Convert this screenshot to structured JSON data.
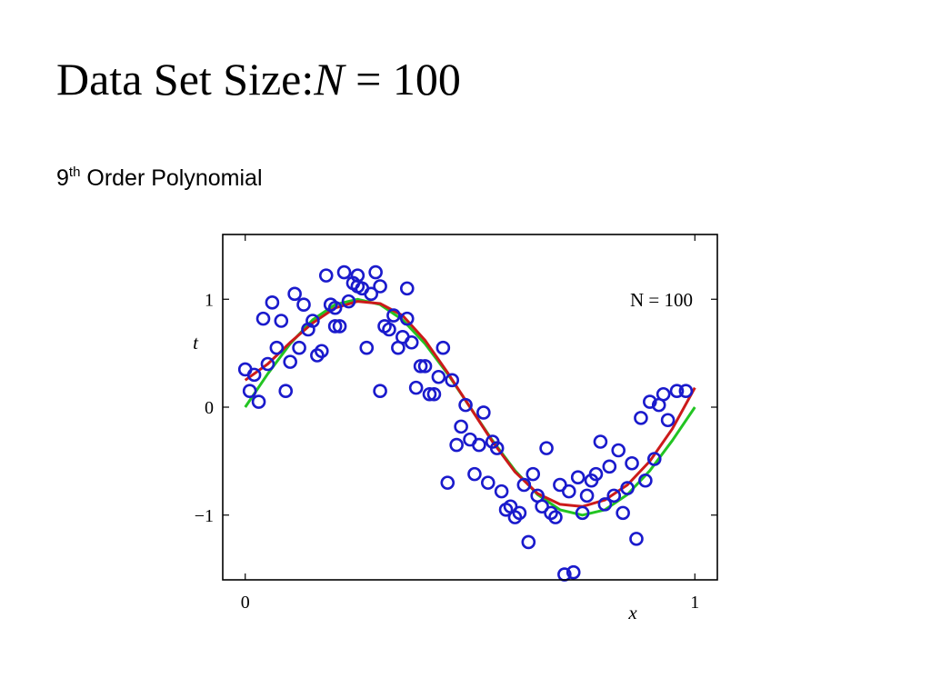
{
  "slide": {
    "title_text": "Data Set Size:",
    "title_math_var": "N",
    "title_math_rest": " = 100",
    "subtitle_number": "9",
    "subtitle_sup": "th",
    "subtitle_rest": " Order Polynomial"
  },
  "chart_data": {
    "type": "scatter",
    "xlabel": "x",
    "ylabel": "t",
    "xlim": [
      -0.05,
      1.05
    ],
    "ylim": [
      -1.6,
      1.6
    ],
    "xticks": [
      0,
      1
    ],
    "xtick_labels": [
      "0",
      "1"
    ],
    "yticks": [
      1,
      0,
      -1
    ],
    "ytick_labels": [
      "1",
      "0",
      "−1"
    ],
    "annotation": "N = 100",
    "grid": false,
    "colors": {
      "points": "#1a1acc",
      "true_curve": "#22c422",
      "fit_curve": "#cc1a1a"
    },
    "series": [
      {
        "type": "scatter",
        "x": [
          0.0,
          0.01,
          0.02,
          0.03,
          0.04,
          0.05,
          0.06,
          0.07,
          0.08,
          0.09,
          0.1,
          0.11,
          0.12,
          0.13,
          0.14,
          0.15,
          0.16,
          0.17,
          0.18,
          0.19,
          0.2,
          0.2,
          0.21,
          0.22,
          0.23,
          0.24,
          0.25,
          0.25,
          0.26,
          0.27,
          0.28,
          0.29,
          0.3,
          0.3,
          0.31,
          0.32,
          0.33,
          0.34,
          0.35,
          0.36,
          0.36,
          0.37,
          0.38,
          0.39,
          0.4,
          0.41,
          0.42,
          0.43,
          0.44,
          0.45,
          0.46,
          0.47,
          0.48,
          0.49,
          0.5,
          0.51,
          0.52,
          0.53,
          0.54,
          0.55,
          0.56,
          0.57,
          0.58,
          0.59,
          0.6,
          0.61,
          0.62,
          0.63,
          0.64,
          0.65,
          0.66,
          0.67,
          0.68,
          0.69,
          0.7,
          0.71,
          0.72,
          0.73,
          0.74,
          0.75,
          0.76,
          0.77,
          0.78,
          0.79,
          0.8,
          0.81,
          0.82,
          0.83,
          0.84,
          0.85,
          0.86,
          0.87,
          0.88,
          0.89,
          0.9,
          0.91,
          0.92,
          0.93,
          0.94,
          0.96,
          0.98
        ],
        "y": [
          0.35,
          0.15,
          0.3,
          0.05,
          0.82,
          0.4,
          0.97,
          0.55,
          0.8,
          0.15,
          0.42,
          1.05,
          0.55,
          0.95,
          0.72,
          0.8,
          0.48,
          0.52,
          1.22,
          0.95,
          0.75,
          0.92,
          0.75,
          1.25,
          0.98,
          1.15,
          1.12,
          1.22,
          1.1,
          0.55,
          1.05,
          1.25,
          1.12,
          0.15,
          0.75,
          0.72,
          0.85,
          0.55,
          0.65,
          1.1,
          0.82,
          0.6,
          0.18,
          0.38,
          0.38,
          0.12,
          0.12,
          0.28,
          0.55,
          -0.7,
          0.25,
          -0.35,
          -0.18,
          0.02,
          -0.3,
          -0.62,
          -0.35,
          -0.05,
          -0.7,
          -0.32,
          -0.38,
          -0.78,
          -0.95,
          -0.92,
          -1.02,
          -0.98,
          -0.72,
          -1.25,
          -0.62,
          -0.82,
          -0.92,
          -0.38,
          -0.98,
          -1.02,
          -0.72,
          -1.55,
          -0.78,
          -1.53,
          -0.65,
          -0.98,
          -0.82,
          -0.68,
          -0.62,
          -0.32,
          -0.9,
          -0.55,
          -0.82,
          -0.4,
          -0.98,
          -0.75,
          -0.52,
          -1.22,
          -0.1,
          -0.68,
          0.05,
          -0.48,
          0.02,
          0.12,
          -0.12,
          0.15,
          0.15
        ]
      },
      {
        "type": "line",
        "name": "",
        "x": [
          0,
          0.05,
          0.1,
          0.15,
          0.2,
          0.25,
          0.3,
          0.35,
          0.4,
          0.45,
          0.5,
          0.55,
          0.6,
          0.65,
          0.7,
          0.75,
          0.8,
          0.85,
          0.9,
          0.95,
          1.0
        ],
        "y": [
          0.0,
          0.309,
          0.588,
          0.809,
          0.951,
          1.0,
          0.951,
          0.809,
          0.588,
          0.309,
          0.0,
          -0.309,
          -0.588,
          -0.809,
          -0.951,
          -1.0,
          -0.951,
          -0.809,
          -0.588,
          -0.309,
          0.0
        ]
      },
      {
        "type": "line",
        "name": "",
        "x": [
          0,
          0.05,
          0.1,
          0.15,
          0.2,
          0.25,
          0.3,
          0.35,
          0.4,
          0.45,
          0.5,
          0.55,
          0.6,
          0.65,
          0.7,
          0.75,
          0.8,
          0.85,
          0.9,
          0.95,
          1.0
        ],
        "y": [
          0.25,
          0.4,
          0.6,
          0.78,
          0.92,
          0.98,
          0.96,
          0.85,
          0.62,
          0.32,
          0.0,
          -0.32,
          -0.6,
          -0.8,
          -0.9,
          -0.92,
          -0.86,
          -0.72,
          -0.5,
          -0.2,
          0.18
        ]
      }
    ]
  }
}
